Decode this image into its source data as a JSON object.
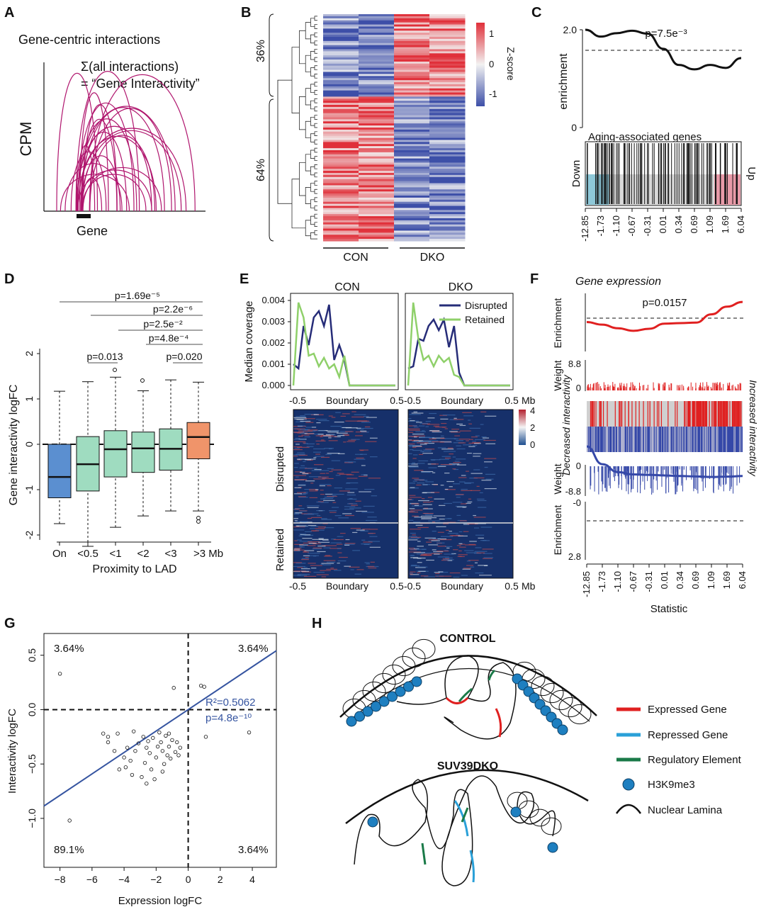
{
  "panels": {
    "A": {
      "label": "A",
      "title": "Gene-centric interactions",
      "formula": "Σ(all interactions)",
      "formula2": "= “Gene Interactivity”",
      "ylabel": "CPM",
      "gene_label": "Gene",
      "arc_color": "#b0166e"
    },
    "B": {
      "label": "B",
      "cluster_top": "36%",
      "cluster_bottom": "64%",
      "col_groups": [
        "CON",
        "DKO"
      ],
      "colorbar_title": "Z-score",
      "colorbar_ticks": [
        "1",
        "0",
        "-1"
      ],
      "colors": {
        "high": "#e0303a",
        "low": "#3d4fa8",
        "mid": "#f2f2f2"
      }
    },
    "C": {
      "label": "C",
      "pvalue": "p=7.5e⁻³",
      "ylabel": "enrichment",
      "yticks": [
        "2.0",
        "0"
      ],
      "set_label": "Aging-associated genes",
      "down_label": "Down",
      "up_label": "Up",
      "xticks": [
        "-12.85",
        "-1.73",
        "-1.10",
        "-0.67",
        "-0.31",
        "0.01",
        "0.34",
        "0.69",
        "1.09",
        "1.69",
        "6.04"
      ]
    },
    "D": {
      "label": "D",
      "ylabel": "Gene interactivity logFC",
      "xlabel": "Proximity to LAD",
      "categories": [
        "On",
        "<0.5",
        "<1",
        "<2",
        "<3",
        ">3 Mb"
      ],
      "yticks": [
        "-2",
        "-1",
        "0",
        "1",
        "2"
      ],
      "pvalues": [
        "p=1.69e⁻⁵",
        "p=2.2e⁻⁶",
        "p=2.5e⁻²",
        "p=4.8e⁻⁴",
        "p=0.020",
        "p=0.013"
      ],
      "colors": {
        "on": "#5b8fd0",
        "mid": "#9fdcc0",
        "far": "#f0946a"
      }
    },
    "E": {
      "label": "E",
      "col_titles": [
        "CON",
        "DKO"
      ],
      "ylabel": "Median coverage",
      "yticks": [
        "0.004",
        "0.003",
        "0.002",
        "0.001",
        "0.000"
      ],
      "legend": [
        "Disrupted",
        "Retained"
      ],
      "xticks": [
        "-0.5",
        "Boundary",
        "0.5"
      ],
      "xunit": "Mb",
      "row_labels": [
        "Disrupted",
        "Retained"
      ],
      "colorbar_ticks": [
        "4",
        "2",
        "0"
      ],
      "colors": {
        "disrupted": "#262c78",
        "retained": "#8fd06a",
        "heat_bg": "#16306a"
      }
    },
    "F": {
      "label": "F",
      "title": "Gene expression",
      "pvalue": "p=0.0157",
      "ylabel_enrich": "Enrichment",
      "ylabel_weight": "Weight",
      "weight_top_ticks": [
        "8.8",
        "0"
      ],
      "weight_bot_ticks": [
        "0",
        "-8.8"
      ],
      "enrich_bot_ticks": [
        "-0",
        "2.8"
      ],
      "decreased": "Decreased interactivity",
      "increased": "Increased interactivity",
      "xticks": [
        "-12.85",
        "-1.73",
        "-1.10",
        "-0.67",
        "-0.31",
        "0.01",
        "0.34",
        "0.69",
        "1.09",
        "1.69",
        "6.04"
      ],
      "xlabel": "Statistic",
      "colors": {
        "up": "#e02020",
        "down": "#3548a8"
      }
    },
    "G": {
      "label": "G",
      "xlabel": "Expression logFC",
      "ylabel": "Interactivity logFC",
      "quadrants": [
        "3.64%",
        "3.64%",
        "89.1%",
        "3.64%"
      ],
      "r2": "R²=0.5062",
      "pvalue": "p=4.8e⁻¹⁰",
      "xticks": [
        "−8",
        "−6",
        "−4",
        "−2",
        "0",
        "2",
        "4"
      ],
      "yticks": [
        "0.5",
        "0.0",
        "−0.5",
        "−1.0"
      ],
      "line_color": "#3554a0"
    },
    "H": {
      "label": "H",
      "control_title": "CONTROL",
      "dko_title": "SUV39DKO",
      "legend": [
        {
          "label": "Expressed Gene",
          "color": "#e02020"
        },
        {
          "label": "Repressed Gene",
          "color": "#2aa0d8"
        },
        {
          "label": "Regulatory Element",
          "color": "#1a7a48"
        },
        {
          "label": "H3K9me3",
          "color": "#1e7fc0"
        },
        {
          "label": "Nuclear Lamina",
          "color": "#111111"
        }
      ]
    }
  },
  "chart_data": [
    {
      "type": "line",
      "panel": "A",
      "title": "Gene-centric interactions",
      "ylabel": "CPM",
      "xlabel": "Gene"
    },
    {
      "type": "heatmap",
      "panel": "B",
      "columns": [
        "CON",
        "CON",
        "DKO",
        "DKO"
      ],
      "clusters": [
        {
          "name": "36%",
          "fraction": 0.36
        },
        {
          "name": "64%",
          "fraction": 0.64
        }
      ],
      "colorbar": {
        "title": "Z-score",
        "range": [
          -1.3,
          1.3
        ],
        "ticks": [
          1,
          0,
          -1
        ]
      }
    },
    {
      "type": "line",
      "panel": "C",
      "ylabel": "enrichment",
      "ylim": [
        0,
        2.0
      ],
      "baseline": 1.64,
      "x_quantiles": [
        0,
        0.1,
        0.2,
        0.3,
        0.4,
        0.5,
        0.6,
        0.7,
        0.8,
        0.9,
        1.0
      ],
      "values": [
        2.0,
        1.86,
        1.93,
        1.98,
        1.92,
        1.61,
        1.28,
        1.19,
        1.28,
        1.22,
        1.42
      ],
      "xticks": [
        "-12.85",
        "-1.73",
        "-1.10",
        "-0.67",
        "-0.31",
        "0.01",
        "0.34",
        "0.69",
        "1.09",
        "1.69",
        "6.04"
      ]
    },
    {
      "type": "box",
      "panel": "D",
      "xlabel": "Proximity to LAD",
      "ylabel": "Gene interactivity logFC",
      "categories": [
        "On",
        "<0.5",
        "<1",
        "<2",
        "<3",
        ">3 Mb"
      ],
      "ylim": [
        -2.3,
        2.2
      ],
      "boxes": [
        {
          "min": -1.75,
          "q1": -1.18,
          "median": -0.72,
          "q3": 0.0,
          "max": 1.17
        },
        {
          "min": -2.25,
          "q1": -1.03,
          "median": -0.44,
          "q3": 0.17,
          "max": 1.38
        },
        {
          "min": -1.83,
          "q1": -0.72,
          "median": -0.11,
          "q3": 0.3,
          "max": 1.48
        },
        {
          "min": -1.58,
          "q1": -0.62,
          "median": -0.09,
          "q3": 0.27,
          "max": 1.18
        },
        {
          "min": -1.47,
          "q1": -0.57,
          "median": -0.1,
          "q3": 0.34,
          "max": 1.42
        },
        {
          "min": -1.47,
          "q1": -0.32,
          "median": 0.16,
          "q3": 0.48,
          "max": 1.37
        }
      ]
    },
    {
      "type": "line",
      "panel": "E",
      "ylabel": "Median coverage",
      "ylim": [
        0,
        0.004
      ],
      "x": [
        -0.5,
        -0.45,
        -0.4,
        -0.35,
        -0.3,
        -0.25,
        -0.2,
        -0.15,
        -0.1,
        -0.05,
        0.0,
        0.05,
        0.1,
        0.5
      ],
      "series": [
        {
          "name": "Disrupted",
          "group": "CON",
          "values": [
            0.001,
            0.0008,
            0.0028,
            0.0019,
            0.0032,
            0.0035,
            0.0028,
            0.0038,
            0.0012,
            0.0019,
            0.0012,
            0.0,
            0.0,
            0.0
          ]
        },
        {
          "name": "Retained",
          "group": "CON",
          "values": [
            0.0,
            0.0039,
            0.0032,
            0.0014,
            0.0015,
            0.0009,
            0.0013,
            0.0008,
            0.001,
            0.0004,
            0.0014,
            0.0,
            0.0,
            0.0
          ]
        },
        {
          "name": "Disrupted",
          "group": "DKO",
          "values": [
            0.0008,
            0.0009,
            0.0022,
            0.0021,
            0.0028,
            0.0031,
            0.0026,
            0.0031,
            0.0018,
            0.0028,
            0.0006,
            0.0,
            0.0,
            0.0
          ]
        },
        {
          "name": "Retained",
          "group": "DKO",
          "values": [
            0.0,
            0.0039,
            0.0022,
            0.0012,
            0.0014,
            0.0009,
            0.0014,
            0.0011,
            0.0013,
            0.0005,
            0.0004,
            0.0,
            0.0,
            0.0
          ]
        }
      ]
    },
    {
      "type": "line",
      "panel": "F",
      "xlabel": "Statistic",
      "series": [
        {
          "name": "Increased interactivity",
          "values": [
            1.07,
            1.02,
            0.95,
            0.9,
            0.94,
            1.04,
            1.05,
            1.06,
            1.22,
            1.37,
            1.46
          ]
        },
        {
          "name": "Decreased interactivity",
          "values": [
            -2.8,
            -1.9,
            -1.5,
            -1.38,
            -1.36,
            -1.33,
            -1.3,
            -1.28,
            -1.25,
            -1.27,
            -1.3
          ]
        }
      ]
    },
    {
      "type": "scatter",
      "panel": "G",
      "xlabel": "Expression logFC",
      "ylabel": "Interactivity logFC",
      "xlim": [
        -9,
        5.5
      ],
      "ylim": [
        -1.45,
        0.7
      ],
      "fit": {
        "slope": 0.0985,
        "intercept": 0.0
      },
      "points": [
        [
          -8.0,
          0.33
        ],
        [
          -7.4,
          -1.02
        ],
        [
          -5.3,
          -0.22
        ],
        [
          -5.0,
          -0.25
        ],
        [
          -4.3,
          -0.55
        ],
        [
          -4.0,
          -0.44
        ],
        [
          -3.8,
          -0.35
        ],
        [
          -3.6,
          -0.47
        ],
        [
          -3.5,
          -0.6
        ],
        [
          -3.3,
          -0.38
        ],
        [
          -3.1,
          -0.31
        ],
        [
          -2.9,
          -0.62
        ],
        [
          -2.7,
          -0.49
        ],
        [
          -2.6,
          -0.68
        ],
        [
          -2.5,
          -0.29
        ],
        [
          -2.4,
          -0.4
        ],
        [
          -2.3,
          -0.55
        ],
        [
          -2.2,
          -0.26
        ],
        [
          -2.1,
          -0.64
        ],
        [
          -2.0,
          -0.44
        ],
        [
          -1.9,
          -0.34
        ],
        [
          -1.8,
          -0.21
        ],
        [
          -1.7,
          -0.3
        ],
        [
          -1.6,
          -0.38
        ],
        [
          -1.5,
          -0.5
        ],
        [
          -1.4,
          -0.24
        ],
        [
          -1.3,
          -0.42
        ],
        [
          -1.2,
          -0.34
        ],
        [
          -1.1,
          -0.45
        ],
        [
          -1.0,
          -0.28
        ],
        [
          -0.9,
          0.2
        ],
        [
          -0.8,
          -0.39
        ],
        [
          0.8,
          0.22
        ],
        [
          1.0,
          0.21
        ],
        [
          1.1,
          -0.25
        ],
        [
          3.8,
          -0.21
        ],
        [
          -4.6,
          -0.38
        ],
        [
          -3.9,
          -0.53
        ],
        [
          -2.8,
          -0.25
        ],
        [
          -1.6,
          -0.57
        ],
        [
          -0.7,
          -0.3
        ],
        [
          -0.6,
          -0.42
        ],
        [
          -5.0,
          -0.3
        ],
        [
          -4.4,
          -0.22
        ],
        [
          -3.4,
          -0.2
        ],
        [
          -2.6,
          -0.35
        ],
        [
          -1.2,
          -0.22
        ],
        [
          -0.5,
          -0.35
        ]
      ]
    }
  ]
}
